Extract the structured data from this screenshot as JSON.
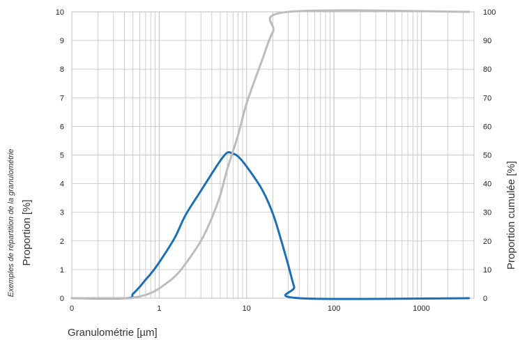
{
  "chart_data": {
    "type": "line",
    "side_note": "Exemples de répartition de la granulométrie",
    "xlabel": "Granulométrie [µm]",
    "ylabel": "Proportion [%]",
    "y2label": "Proportion cumulée [%]",
    "x_scale": "log",
    "xlim": [
      0.1,
      4000
    ],
    "ylim": [
      0,
      10
    ],
    "y2lim": [
      0,
      100
    ],
    "x_ticks": [
      {
        "value": 0.1,
        "label": "0"
      },
      {
        "value": 1,
        "label": "1"
      },
      {
        "value": 10,
        "label": "10"
      },
      {
        "value": 100,
        "label": "100"
      },
      {
        "value": 1000,
        "label": "1000"
      }
    ],
    "y_ticks": [
      "0",
      "1",
      "2",
      "3",
      "4",
      "5",
      "6",
      "7",
      "8",
      "9",
      "10"
    ],
    "y2_ticks": [
      "0",
      "10",
      "20",
      "30",
      "40",
      "50",
      "60",
      "70",
      "80",
      "90",
      "100"
    ],
    "grid": true,
    "colors": {
      "grid": "#c8c8c8",
      "frame": "#bdbdbd",
      "proportion": "#1a6fb8",
      "cumulative": "#bcbcbc"
    },
    "series": [
      {
        "axis": "left",
        "color": "#1a6fb8",
        "points": [
          [
            0.1,
            0
          ],
          [
            0.42,
            0
          ],
          [
            0.5,
            0.15
          ],
          [
            0.6,
            0.4
          ],
          [
            0.7,
            0.65
          ],
          [
            0.8,
            0.85
          ],
          [
            1,
            1.25
          ],
          [
            1.5,
            2.1
          ],
          [
            2,
            2.9
          ],
          [
            3,
            3.75
          ],
          [
            4,
            4.35
          ],
          [
            5,
            4.8
          ],
          [
            6,
            5.08
          ],
          [
            7,
            5.05
          ],
          [
            8,
            4.95
          ],
          [
            10,
            4.6
          ],
          [
            15,
            3.8
          ],
          [
            20,
            2.95
          ],
          [
            25,
            2.0
          ],
          [
            30,
            1.15
          ],
          [
            35,
            0.4
          ],
          [
            40,
            0
          ],
          [
            3500,
            0
          ]
        ]
      },
      {
        "axis": "right",
        "color": "#bcbcbc",
        "points": [
          [
            0.1,
            0
          ],
          [
            0.42,
            0
          ],
          [
            0.5,
            0.2
          ],
          [
            0.6,
            0.6
          ],
          [
            0.8,
            1.8
          ],
          [
            1,
            3.4
          ],
          [
            1.5,
            7.5
          ],
          [
            2,
            12
          ],
          [
            3,
            20
          ],
          [
            4,
            28
          ],
          [
            5,
            36
          ],
          [
            6,
            45
          ],
          [
            8,
            57
          ],
          [
            10,
            68
          ],
          [
            15,
            83
          ],
          [
            20,
            93
          ],
          [
            30,
            100
          ],
          [
            3500,
            100
          ]
        ]
      }
    ]
  }
}
